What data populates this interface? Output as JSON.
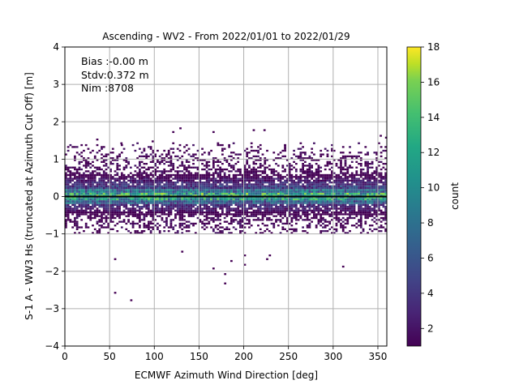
{
  "chart_data": {
    "type": "heatmap",
    "title": "Ascending - WV2 - From 2022/01/01 to 2022/01/29",
    "xlabel": "ECMWF Azimuth Wind Direction [deg]",
    "ylabel": "S-1 A - WW3 Hs (truncated at Azimuth Cut Off) [m]",
    "xlim": [
      0,
      360
    ],
    "ylim": [
      -4,
      4
    ],
    "x_ticks": [
      "0",
      "50",
      "100",
      "150",
      "200",
      "250",
      "300",
      "350"
    ],
    "y_ticks": [
      "−4",
      "−3",
      "−2",
      "−1",
      "0",
      "1",
      "2",
      "3",
      "4"
    ],
    "grid": true,
    "colormap": "viridis",
    "colorbar": {
      "label": "count",
      "range": [
        1,
        18
      ],
      "ticks": [
        "2",
        "4",
        "6",
        "8",
        "10",
        "12",
        "14",
        "16",
        "18"
      ]
    },
    "bins": {
      "x_width_deg": 2.5,
      "y_height_m": 0.05
    },
    "density_profile": {
      "note": "approximate count by Hs-difference band, shared across all azimuth bins",
      "y_centers": [
        -0.45,
        -0.35,
        -0.25,
        -0.15,
        -0.05,
        0.05,
        0.15,
        0.25,
        0.35,
        0.45,
        0.55
      ],
      "typical_count": [
        1,
        2,
        3,
        6,
        10,
        11,
        7,
        4,
        3,
        2,
        1
      ]
    },
    "reference_line": {
      "y": 0,
      "color": "#000000"
    },
    "stats_annotation": [
      "Bias :-0.00 m",
      "Stdv:0.372 m",
      "Nim :8708"
    ],
    "outliers": [
      {
        "x": 55,
        "y": -1.7
      },
      {
        "x": 55,
        "y": -2.6
      },
      {
        "x": 73,
        "y": -2.8
      },
      {
        "x": 178,
        "y": -2.1
      },
      {
        "x": 178,
        "y": -2.35
      },
      {
        "x": 165,
        "y": -1.95
      },
      {
        "x": 200,
        "y": -1.85
      },
      {
        "x": 200,
        "y": -1.6
      },
      {
        "x": 225,
        "y": -1.7
      },
      {
        "x": 228,
        "y": -1.6
      },
      {
        "x": 310,
        "y": -1.9
      },
      {
        "x": 130,
        "y": -1.5
      },
      {
        "x": 185,
        "y": -1.75
      },
      {
        "x": 120,
        "y": 1.7
      },
      {
        "x": 128,
        "y": 1.8
      },
      {
        "x": 165,
        "y": 1.7
      },
      {
        "x": 210,
        "y": 1.75
      },
      {
        "x": 222,
        "y": 1.75
      },
      {
        "x": 245,
        "y": 1.35
      },
      {
        "x": 352,
        "y": 1.6
      },
      {
        "x": 358,
        "y": 1.55
      },
      {
        "x": 35,
        "y": 1.5
      },
      {
        "x": 62,
        "y": 1.4
      },
      {
        "x": 97,
        "y": 1.45
      }
    ]
  }
}
